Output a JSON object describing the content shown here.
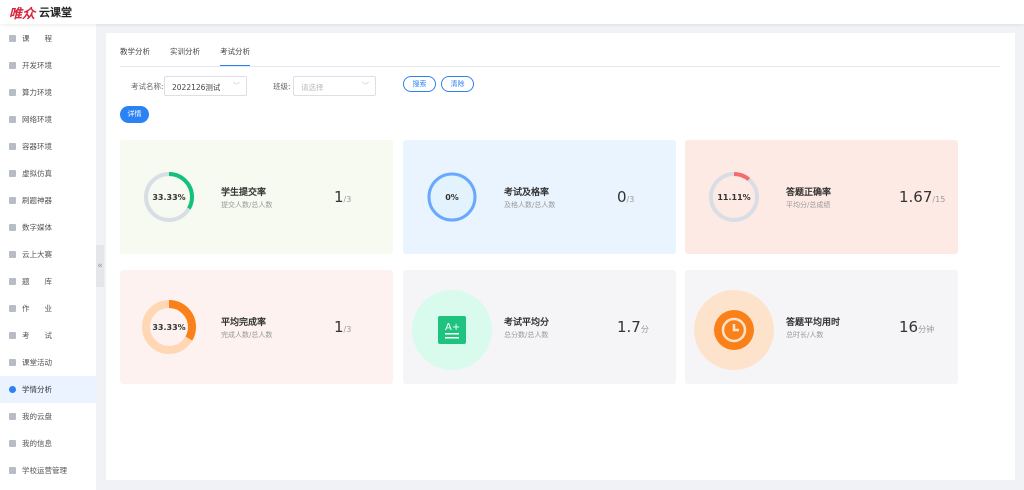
{
  "brand": {
    "mark": "唯众",
    "name": "云课堂"
  },
  "sidebar": {
    "items": [
      {
        "label": "课　　程"
      },
      {
        "label": "开发环境"
      },
      {
        "label": "算力环境"
      },
      {
        "label": "网络环境"
      },
      {
        "label": "容器环境"
      },
      {
        "label": "虚拟仿真"
      },
      {
        "label": "刷题神器"
      },
      {
        "label": "数字媒体"
      },
      {
        "label": "云上大赛"
      },
      {
        "label": "题　　库"
      },
      {
        "label": "作　　业"
      },
      {
        "label": "考　　试"
      },
      {
        "label": "课堂活动"
      },
      {
        "label": "学情分析",
        "active": true
      },
      {
        "label": "我的云盘"
      },
      {
        "label": "我的信息"
      },
      {
        "label": "学校运营管理"
      }
    ],
    "collapse": "«"
  },
  "tabs": [
    {
      "label": "教学分析"
    },
    {
      "label": "实训分析"
    },
    {
      "label": "考试分析",
      "active": true
    }
  ],
  "filters": {
    "exam_label": "考试名称:",
    "exam_value": "2022126测试",
    "class_label": "班级:",
    "class_placeholder": "请选择",
    "search": "搜索",
    "clear": "清除",
    "detail": "详情"
  },
  "cards": [
    {
      "title": "学生提交率",
      "sub": "提交人数/总人数",
      "ring": "33.33%",
      "percent": 33.33,
      "value": "1",
      "unit": "/3",
      "color": "#13c27a"
    },
    {
      "title": "考试及格率",
      "sub": "及格人数/总人数",
      "ring": "0%",
      "percent": 0,
      "value": "0",
      "unit": "/3",
      "color": "#6aa8ff"
    },
    {
      "title": "答题正确率",
      "sub": "平均分/总成绩",
      "ring": "11.11%",
      "percent": 11.11,
      "value": "1.67",
      "unit": "/15",
      "color": "#f56c6c"
    },
    {
      "title": "平均完成率",
      "sub": "完成人数/总人数",
      "ring": "33.33%",
      "percent": 33.33,
      "value": "1",
      "unit": "/3",
      "color": "#fa8119"
    },
    {
      "title": "考试平均分",
      "sub": "总分数/总人数",
      "icon": "grade-a-plus-icon",
      "value": "1.7",
      "unit": "分",
      "color": "#1dc37e"
    },
    {
      "title": "答题平均用时",
      "sub": "总时长/人数",
      "icon": "clock-icon",
      "value": "16",
      "unit": "分钟",
      "color": "#fa8119"
    }
  ]
}
